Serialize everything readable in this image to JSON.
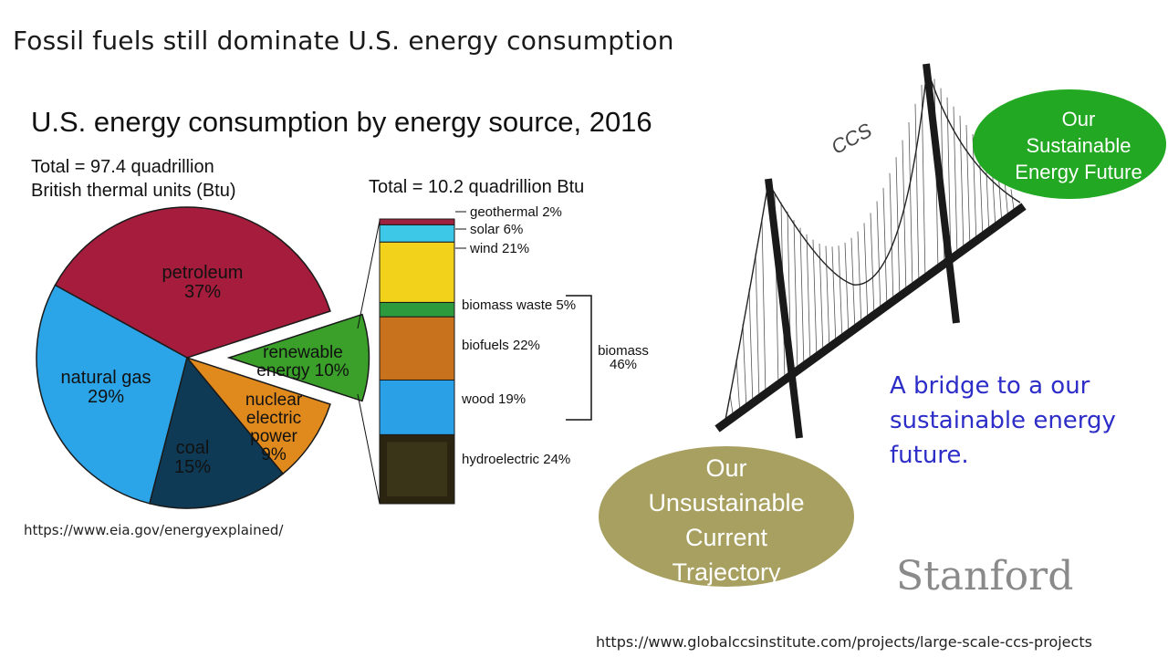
{
  "slide_title": "Fossil fuels still dominate U.S. energy consumption",
  "chart_title": "U.S. energy consumption by energy source, 2016",
  "total_main_line1": "Total = 97.4 quadrillion",
  "total_main_line2": "British thermal units (Btu)",
  "total_renewable": "Total = 10.2 quadrillion Btu",
  "source_left": "https://www.eia.gov/energyexplained/",
  "source_right": "https://www.globalccsinstitute.com/projects/large-scale-ccs-projects",
  "bridge_label": "CCS",
  "bridge_text_lines": [
    "A bridge to a our",
    "sustainable energy",
    "future."
  ],
  "oval_left_lines": [
    "Our",
    "Unsustainable",
    "Current",
    "Trajectory"
  ],
  "oval_right_lines": [
    "Our",
    "Sustainable",
    "Energy Future"
  ],
  "logo_text": "Stanford",
  "colors": {
    "petroleum": "#a51c3c",
    "natural_gas": "#2ca4e8",
    "coal": "#0f3a55",
    "nuclear": "#e08a1e",
    "renewable": "#3aa02a",
    "oval_left": "#a8a060",
    "oval_right": "#22a822",
    "bridge_text": "#2d2dc8"
  },
  "chart_data": [
    {
      "type": "pie",
      "labels": [
        "petroleum",
        "natural gas",
        "coal",
        "nuclear electric power",
        "renewable energy"
      ],
      "display_labels": {
        "petroleum": [
          "petroleum",
          "37%"
        ],
        "natural_gas": [
          "natural gas",
          "29%"
        ],
        "coal": [
          "coal",
          "15%"
        ],
        "nuclear": [
          "nuclear",
          "electric",
          "power",
          "9%"
        ],
        "renewable": [
          "renewable",
          "energy 10%"
        ]
      },
      "values": [
        37,
        29,
        15,
        9,
        10
      ]
    },
    {
      "type": "bar",
      "stacked": true,
      "categories": [
        "hydroelectric",
        "wood",
        "biofuels",
        "biomass waste",
        "wind",
        "solar",
        "geothermal"
      ],
      "labels": [
        "hydroelectric 24%",
        "wood 19%",
        "biofuels 22%",
        "biomass waste 5%",
        "wind 21%",
        "solar 6%",
        "geothermal 2%"
      ],
      "values": [
        24,
        19,
        22,
        5,
        21,
        6,
        2
      ],
      "colors": [
        "#2a2410",
        "#2aa0e6",
        "#c8721e",
        "#2e9a3e",
        "#f2d21a",
        "#3cc8e6",
        "#a02040"
      ],
      "group_label_lines": [
        "biomass",
        "46%"
      ]
    }
  ]
}
